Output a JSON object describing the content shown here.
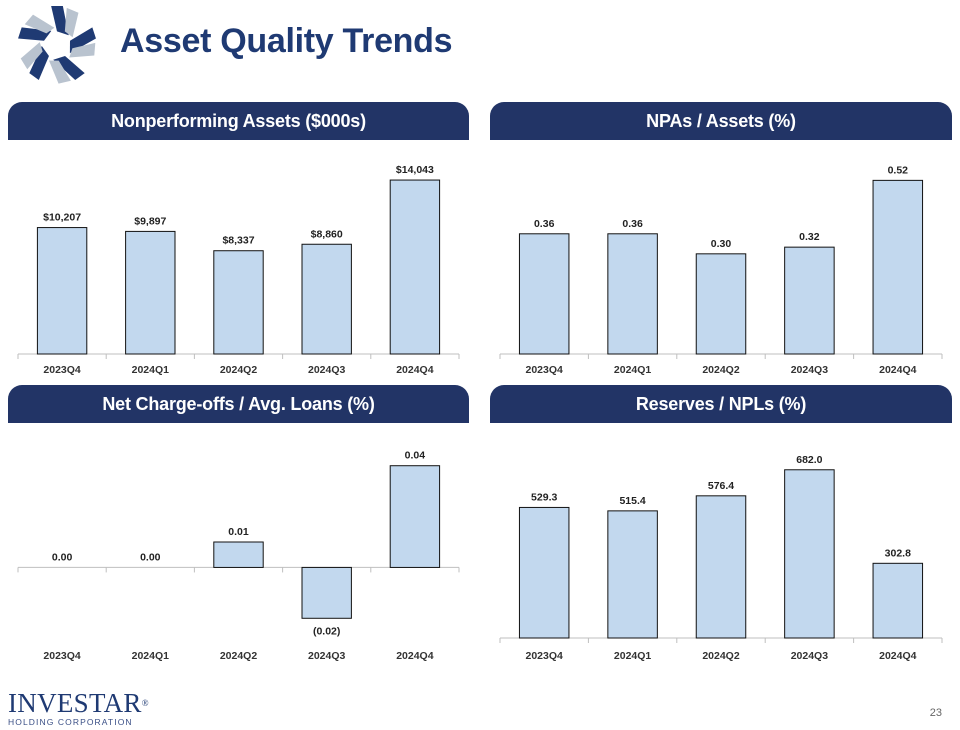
{
  "header": {
    "title": "Asset Quality Trends"
  },
  "colors": {
    "navy": "#223466",
    "title": "#1f3a73",
    "bar": "#c2d8ee",
    "bar_stroke": "#111111"
  },
  "footer": {
    "brand": "INVESTAR",
    "registered": "®",
    "tagline": "HOLDING CORPORATION",
    "page_number": "23"
  },
  "chart_data": [
    {
      "id": "npa",
      "type": "bar",
      "title": "Nonperforming Assets ($000s)",
      "categories": [
        "2023Q4",
        "2024Q1",
        "2024Q2",
        "2024Q3",
        "2024Q4"
      ],
      "values": [
        10207,
        9897,
        8337,
        8860,
        14043
      ],
      "labels": [
        "$10,207",
        "$9,897",
        "$8,337",
        "$8,860",
        "$14,043"
      ],
      "ylim": [
        0,
        15500
      ]
    },
    {
      "id": "npa-assets",
      "type": "bar",
      "title": "NPAs / Assets (%)",
      "categories": [
        "2023Q4",
        "2024Q1",
        "2024Q2",
        "2024Q3",
        "2024Q4"
      ],
      "values": [
        0.36,
        0.36,
        0.3,
        0.32,
        0.52
      ],
      "labels": [
        "0.36",
        "0.36",
        "0.30",
        "0.32",
        "0.52"
      ],
      "ylim": [
        0,
        0.575
      ]
    },
    {
      "id": "nco",
      "type": "bar",
      "title": "Net Charge-offs / Avg. Loans (%)",
      "categories": [
        "2023Q4",
        "2024Q1",
        "2024Q2",
        "2024Q3",
        "2024Q4"
      ],
      "values": [
        0.0,
        0.0,
        0.01,
        -0.02,
        0.04
      ],
      "labels": [
        "0.00",
        "0.00",
        "0.01",
        "(0.02)",
        "0.04"
      ],
      "ylim": [
        -0.025,
        0.045
      ]
    },
    {
      "id": "reserves",
      "type": "bar",
      "title": "Reserves / NPLs (%)",
      "categories": [
        "2023Q4",
        "2024Q1",
        "2024Q2",
        "2024Q3",
        "2024Q4"
      ],
      "values": [
        529.3,
        515.4,
        576.4,
        682.0,
        302.8
      ],
      "labels": [
        "529.3",
        "515.4",
        "576.4",
        "682.0",
        "302.8"
      ],
      "ylim": [
        0,
        750
      ]
    }
  ]
}
